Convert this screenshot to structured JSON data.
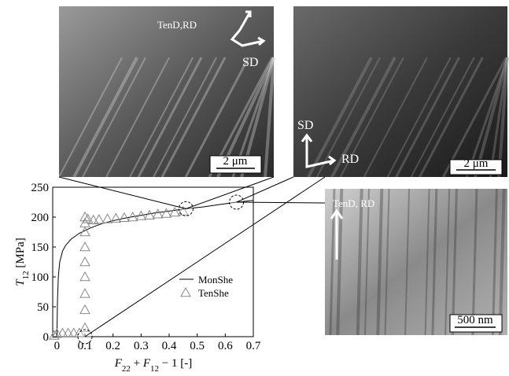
{
  "chart_data": {
    "type": "line",
    "ylabel": {
      "symbol": "T",
      "subscript": "12",
      "unit": " [MPa]"
    },
    "xlabel": [
      {
        "symbol": "F",
        "subscript": "22"
      },
      {
        "text": " + "
      },
      {
        "symbol": "F",
        "subscript": "12"
      },
      {
        "text": " − 1 [-]"
      }
    ],
    "xlim": [
      -0.015,
      0.7
    ],
    "ylim": [
      0,
      250
    ],
    "xticks": [
      0,
      0.1,
      0.2,
      0.3,
      0.4,
      0.5,
      0.6,
      0.7
    ],
    "yticks": [
      0,
      50,
      100,
      150,
      200,
      250
    ],
    "legend": "lower center",
    "series": [
      {
        "name": "MonShe",
        "color": "#000000",
        "marker": "none",
        "x": [
          0,
          0.002,
          0.005,
          0.01,
          0.02,
          0.03,
          0.05,
          0.08,
          0.12,
          0.16,
          0.2,
          0.25,
          0.3,
          0.35,
          0.4,
          0.46,
          0.52,
          0.58,
          0.64,
          0.7
        ],
        "values": [
          0,
          60,
          100,
          125,
          143,
          152,
          163,
          173,
          182,
          189,
          194,
          199,
          203,
          207,
          210,
          214,
          217,
          221,
          225,
          228
        ]
      },
      {
        "name": "TenShe",
        "color": "#888888",
        "marker": "triangle",
        "x": [
          -0.01,
          0.0,
          0.02,
          0.04,
          0.06,
          0.08,
          0.1,
          0.1,
          0.1,
          0.1,
          0.1,
          0.1,
          0.1,
          0.1,
          0.1,
          0.11,
          0.13,
          0.15,
          0.18,
          0.21,
          0.24,
          0.27,
          0.3,
          0.33,
          0.36,
          0.39,
          0.42,
          0.45
        ],
        "values": [
          2,
          5,
          6,
          6,
          6,
          6,
          15,
          45,
          72,
          100,
          125,
          150,
          175,
          190,
          200,
          197,
          195,
          196,
          197,
          198,
          199,
          200,
          202,
          203,
          205,
          206,
          208,
          210
        ]
      }
    ]
  },
  "micrographs": [
    {
      "labels": [
        "TenD,RD",
        "SD"
      ],
      "scale": "2 μm"
    },
    {
      "labels": [
        "SD",
        "RD"
      ],
      "scale": "2 μm"
    },
    {
      "labels": [
        "TenD, RD"
      ],
      "scale": "500 nm"
    }
  ]
}
